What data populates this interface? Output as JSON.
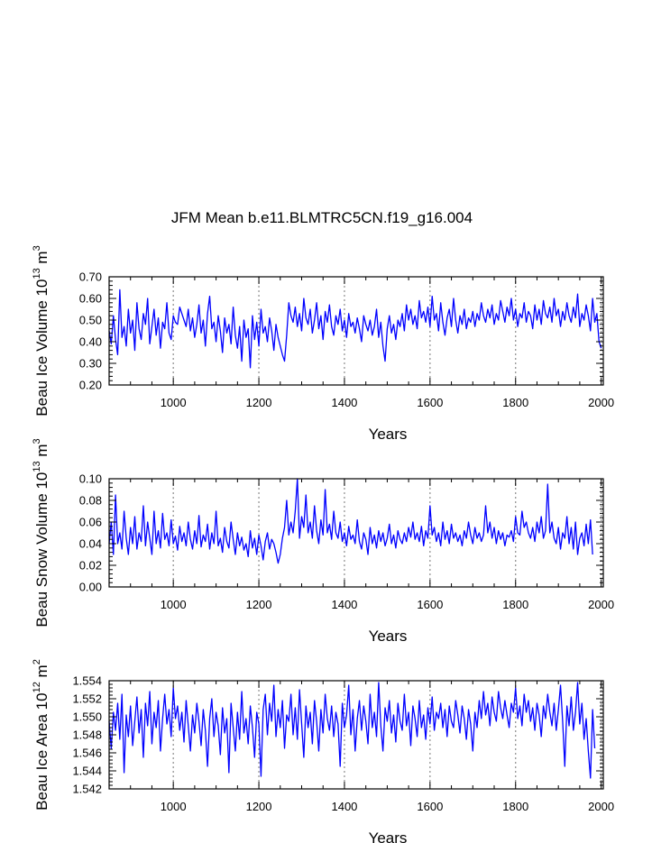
{
  "title": "JFM Mean b.e11.BLMTRC5CN.f19_g16.004",
  "colors": {
    "series": "#0000ff",
    "axis": "#000000",
    "refline": "#8c8c8c"
  },
  "chart_data": [
    {
      "type": "line",
      "ylabel_main": "Beau Ice Volume 10",
      "ylabel_exp": "13",
      "ylabel_unit": " m",
      "ylabel_unit_exp": "3",
      "xlabel": "Years",
      "xlim": [
        850,
        2005
      ],
      "ylim": [
        0.2,
        0.7
      ],
      "xticks": [
        1000,
        1200,
        1400,
        1600,
        1800,
        2000
      ],
      "xtick_labels": [
        "1000",
        "1200",
        "1400",
        "1600",
        "1800",
        "2000"
      ],
      "yticks": [
        0.2,
        0.3,
        0.4,
        0.5,
        0.6,
        0.7
      ],
      "ytick_labels": [
        "0.20",
        "0.30",
        "0.40",
        "0.50",
        "0.60",
        "0.70"
      ],
      "ref_lines_x": [
        1000,
        1200,
        1400,
        1600,
        1800,
        2000
      ],
      "sample_interval_years": 5,
      "series": [
        {
          "name": "Beau Ice Volume",
          "x_start": 850,
          "values": [
            0.45,
            0.39,
            0.52,
            0.41,
            0.34,
            0.64,
            0.42,
            0.47,
            0.38,
            0.55,
            0.44,
            0.5,
            0.36,
            0.58,
            0.46,
            0.41,
            0.53,
            0.48,
            0.6,
            0.39,
            0.47,
            0.55,
            0.43,
            0.51,
            0.37,
            0.49,
            0.46,
            0.58,
            0.44,
            0.41,
            0.52,
            0.49,
            0.48,
            0.56,
            0.53,
            0.5,
            0.47,
            0.55,
            0.45,
            0.51,
            0.42,
            0.48,
            0.57,
            0.44,
            0.5,
            0.38,
            0.53,
            0.61,
            0.46,
            0.49,
            0.4,
            0.52,
            0.45,
            0.35,
            0.51,
            0.44,
            0.48,
            0.39,
            0.56,
            0.43,
            0.37,
            0.47,
            0.31,
            0.5,
            0.42,
            0.46,
            0.28,
            0.52,
            0.41,
            0.49,
            0.38,
            0.55,
            0.44,
            0.47,
            0.4,
            0.51,
            0.45,
            0.36,
            0.48,
            0.42,
            0.38,
            0.34,
            0.31,
            0.43,
            0.58,
            0.52,
            0.49,
            0.56,
            0.47,
            0.53,
            0.45,
            0.6,
            0.51,
            0.48,
            0.55,
            0.44,
            0.5,
            0.58,
            0.46,
            0.52,
            0.41,
            0.54,
            0.49,
            0.57,
            0.47,
            0.43,
            0.52,
            0.48,
            0.55,
            0.45,
            0.5,
            0.42,
            0.53,
            0.47,
            0.49,
            0.44,
            0.51,
            0.46,
            0.4,
            0.52,
            0.48,
            0.45,
            0.5,
            0.43,
            0.47,
            0.55,
            0.42,
            0.49,
            0.38,
            0.31,
            0.46,
            0.52,
            0.44,
            0.48,
            0.41,
            0.5,
            0.47,
            0.53,
            0.45,
            0.57,
            0.5,
            0.55,
            0.48,
            0.52,
            0.46,
            0.59,
            0.51,
            0.54,
            0.49,
            0.56,
            0.47,
            0.61,
            0.5,
            0.53,
            0.45,
            0.58,
            0.49,
            0.43,
            0.51,
            0.55,
            0.47,
            0.6,
            0.5,
            0.44,
            0.52,
            0.48,
            0.55,
            0.46,
            0.51,
            0.49,
            0.54,
            0.47,
            0.53,
            0.5,
            0.58,
            0.52,
            0.49,
            0.55,
            0.51,
            0.57,
            0.48,
            0.53,
            0.5,
            0.59,
            0.54,
            0.49,
            0.56,
            0.52,
            0.6,
            0.5,
            0.55,
            0.47,
            0.53,
            0.51,
            0.58,
            0.49,
            0.54,
            0.52,
            0.46,
            0.57,
            0.5,
            0.55,
            0.48,
            0.59,
            0.53,
            0.51,
            0.56,
            0.49,
            0.6,
            0.52,
            0.55,
            0.47,
            0.54,
            0.5,
            0.58,
            0.52,
            0.49,
            0.56,
            0.51,
            0.62,
            0.47,
            0.53,
            0.5,
            0.57,
            0.52,
            0.45,
            0.6,
            0.49,
            0.53,
            0.4,
            0.37
          ]
        }
      ]
    },
    {
      "type": "line",
      "ylabel_main": "Beau Snow Volume 10",
      "ylabel_exp": "13",
      "ylabel_unit": " m",
      "ylabel_unit_exp": "3",
      "xlabel": "Years",
      "xlim": [
        850,
        2005
      ],
      "ylim": [
        0.0,
        0.1
      ],
      "xticks": [
        1000,
        1200,
        1400,
        1600,
        1800,
        2000
      ],
      "xtick_labels": [
        "1000",
        "1200",
        "1400",
        "1600",
        "1800",
        "2000"
      ],
      "yticks": [
        0.0,
        0.02,
        0.04,
        0.06,
        0.08,
        0.1
      ],
      "ytick_labels": [
        "0.00",
        "0.02",
        "0.04",
        "0.06",
        "0.08",
        "0.10"
      ],
      "ref_lines_x": [
        1000,
        1200,
        1400,
        1600,
        1800,
        2000
      ],
      "sample_interval_years": 5,
      "series": [
        {
          "name": "Beau Snow Volume",
          "x_start": 850,
          "values": [
            0.04,
            0.06,
            0.03,
            0.085,
            0.04,
            0.05,
            0.035,
            0.07,
            0.045,
            0.03,
            0.055,
            0.04,
            0.065,
            0.035,
            0.05,
            0.042,
            0.075,
            0.038,
            0.06,
            0.045,
            0.03,
            0.07,
            0.04,
            0.052,
            0.036,
            0.068,
            0.044,
            0.05,
            0.038,
            0.062,
            0.04,
            0.047,
            0.034,
            0.056,
            0.042,
            0.05,
            0.038,
            0.06,
            0.044,
            0.035,
            0.052,
            0.04,
            0.066,
            0.037,
            0.048,
            0.042,
            0.058,
            0.035,
            0.05,
            0.04,
            0.07,
            0.038,
            0.045,
            0.032,
            0.055,
            0.042,
            0.036,
            0.06,
            0.044,
            0.03,
            0.05,
            0.038,
            0.046,
            0.034,
            0.04,
            0.028,
            0.052,
            0.036,
            0.045,
            0.03,
            0.048,
            0.038,
            0.025,
            0.042,
            0.05,
            0.035,
            0.044,
            0.04,
            0.032,
            0.022,
            0.03,
            0.045,
            0.055,
            0.08,
            0.048,
            0.06,
            0.05,
            0.07,
            0.1,
            0.045,
            0.065,
            0.055,
            0.085,
            0.05,
            0.06,
            0.045,
            0.075,
            0.052,
            0.04,
            0.062,
            0.048,
            0.09,
            0.05,
            0.058,
            0.044,
            0.07,
            0.05,
            0.045,
            0.06,
            0.042,
            0.05,
            0.038,
            0.056,
            0.044,
            0.048,
            0.04,
            0.062,
            0.042,
            0.035,
            0.05,
            0.044,
            0.03,
            0.055,
            0.04,
            0.048,
            0.036,
            0.052,
            0.042,
            0.05,
            0.038,
            0.045,
            0.058,
            0.04,
            0.048,
            0.036,
            0.052,
            0.044,
            0.04,
            0.05,
            0.042,
            0.055,
            0.046,
            0.06,
            0.044,
            0.05,
            0.042,
            0.056,
            0.038,
            0.052,
            0.045,
            0.075,
            0.048,
            0.055,
            0.042,
            0.05,
            0.038,
            0.06,
            0.044,
            0.052,
            0.04,
            0.058,
            0.045,
            0.05,
            0.042,
            0.048,
            0.038,
            0.052,
            0.045,
            0.06,
            0.048,
            0.04,
            0.055,
            0.045,
            0.05,
            0.042,
            0.048,
            0.075,
            0.05,
            0.06,
            0.045,
            0.055,
            0.04,
            0.052,
            0.044,
            0.05,
            0.038,
            0.048,
            0.046,
            0.052,
            0.042,
            0.065,
            0.05,
            0.048,
            0.07,
            0.055,
            0.06,
            0.05,
            0.045,
            0.055,
            0.042,
            0.06,
            0.05,
            0.065,
            0.045,
            0.052,
            0.095,
            0.05,
            0.06,
            0.045,
            0.04,
            0.055,
            0.035,
            0.05,
            0.045,
            0.065,
            0.04,
            0.055,
            0.035,
            0.06,
            0.03,
            0.045,
            0.05,
            0.038,
            0.058,
            0.04,
            0.062,
            0.03
          ]
        }
      ]
    },
    {
      "type": "line",
      "ylabel_main": "Beau Ice Area 10",
      "ylabel_exp": "12",
      "ylabel_unit": " m",
      "ylabel_unit_exp": "2",
      "xlabel": "Years",
      "xlim": [
        850,
        2005
      ],
      "ylim": [
        1.542,
        1.554
      ],
      "xticks": [
        1000,
        1200,
        1400,
        1600,
        1800,
        2000
      ],
      "xtick_labels": [
        "1000",
        "1200",
        "1400",
        "1600",
        "1800",
        "2000"
      ],
      "yticks": [
        1.542,
        1.544,
        1.546,
        1.548,
        1.55,
        1.552,
        1.554
      ],
      "ytick_labels": [
        "1.542",
        "1.544",
        "1.546",
        "1.548",
        "1.550",
        "1.552",
        "1.554"
      ],
      "ref_lines_x": [
        1000,
        1200,
        1400,
        1600,
        1800,
        2000
      ],
      "sample_interval_years": 5,
      "series": [
        {
          "name": "Beau Ice Area",
          "x_start": 850,
          "values": [
            1.5495,
            1.5465,
            1.5505,
            1.5485,
            1.5515,
            1.5475,
            1.5525,
            1.5438,
            1.5502,
            1.5478,
            1.5512,
            1.5468,
            1.5495,
            1.5522,
            1.5482,
            1.5508,
            1.5455,
            1.5515,
            1.549,
            1.5528,
            1.547,
            1.5505,
            1.5488,
            1.5518,
            1.5462,
            1.5498,
            1.5525,
            1.5492,
            1.5508,
            1.5478,
            1.5532,
            1.5498,
            1.5512,
            1.5485,
            1.5505,
            1.5472,
            1.5518,
            1.549,
            1.5462,
            1.5502,
            1.5482,
            1.5515,
            1.5495,
            1.5468,
            1.5508,
            1.5485,
            1.5445,
            1.5498,
            1.552,
            1.5478,
            1.5505,
            1.549,
            1.5458,
            1.551,
            1.5482,
            1.5498,
            1.5438,
            1.5515,
            1.5488,
            1.5462,
            1.5505,
            1.5475,
            1.5528,
            1.5482,
            1.5498,
            1.547,
            1.5512,
            1.5488,
            1.5455,
            1.5505,
            1.5492,
            1.5434,
            1.5508,
            1.5525,
            1.548,
            1.5515,
            1.5495,
            1.5535,
            1.5478,
            1.5508,
            1.5488,
            1.5518,
            1.5465,
            1.5502,
            1.5495,
            1.5525,
            1.548,
            1.551,
            1.5475,
            1.553,
            1.5492,
            1.5455,
            1.5512,
            1.5488,
            1.5505,
            1.547,
            1.5518,
            1.5495,
            1.5462,
            1.5508,
            1.5482,
            1.5525,
            1.5498,
            1.5485,
            1.5512,
            1.5478,
            1.5505,
            1.5492,
            1.5445,
            1.5515,
            1.5488,
            1.5502,
            1.5535,
            1.548,
            1.5508,
            1.5462,
            1.5498,
            1.5518,
            1.5485,
            1.5512,
            1.5495,
            1.547,
            1.5525,
            1.5488,
            1.5505,
            1.5478,
            1.5538,
            1.549,
            1.5462,
            1.551,
            1.5495,
            1.5518,
            1.5482,
            1.5502,
            1.5472,
            1.5515,
            1.5495,
            1.5485,
            1.5525,
            1.549,
            1.5505,
            1.5468,
            1.5512,
            1.5498,
            1.5478,
            1.5518,
            1.5488,
            1.5502,
            1.5475,
            1.551,
            1.5492,
            1.5522,
            1.5485,
            1.5505,
            1.5498,
            1.5515,
            1.5488,
            1.5508,
            1.5478,
            1.5512,
            1.5495,
            1.5488,
            1.5518,
            1.5502,
            1.5482,
            1.5512,
            1.5498,
            1.5475,
            1.5508,
            1.5492,
            1.5462,
            1.5505,
            1.5488,
            1.5518,
            1.5498,
            1.5528,
            1.5502,
            1.5515,
            1.549,
            1.5522,
            1.5505,
            1.5495,
            1.5528,
            1.551,
            1.5498,
            1.5518,
            1.5502,
            1.5488,
            1.5515,
            1.5505,
            1.5532,
            1.5498,
            1.5512,
            1.549,
            1.5525,
            1.5505,
            1.5518,
            1.5495,
            1.551,
            1.5485,
            1.5515,
            1.5502,
            1.5478,
            1.5512,
            1.5498,
            1.5525,
            1.5505,
            1.549,
            1.5515,
            1.5485,
            1.5508,
            1.5535,
            1.5495,
            1.5445,
            1.5512,
            1.549,
            1.5522,
            1.5485,
            1.5505,
            1.5538,
            1.5492,
            1.5515,
            1.5475,
            1.5498,
            1.5462,
            1.5432,
            1.5508,
            1.5465
          ]
        }
      ]
    }
  ]
}
